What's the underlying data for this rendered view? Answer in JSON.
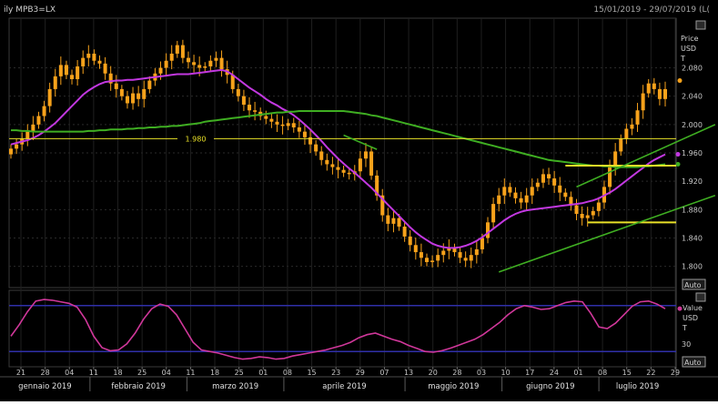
{
  "header": {
    "instrument_label": "ily MPB3=LX",
    "date_range": "15/01/2019 - 29/07/2019 (L("
  },
  "price_panel": {
    "axis_title_lines": [
      "Price",
      "USD",
      "T"
    ],
    "auto_label": "Auto"
  },
  "oscillator_panel": {
    "axis_title_lines": [
      "Value",
      "USD",
      "T"
    ],
    "auto_label": "Auto"
  },
  "colors": {
    "background": "#000000",
    "candle": "#f7a21b",
    "ma_short": "#c238e0",
    "ma_long": "#3fae22",
    "hline": "#e8e028",
    "band": "#2f2fa8",
    "oscillator": "#d0379a",
    "axis_text": "#c9c9c9"
  },
  "chart_data": [
    {
      "type": "candlestick",
      "y_ticks": [
        "2.080",
        "2.040",
        "2.000",
        "1.960",
        "1.920",
        "1.880",
        "1.840",
        "1.800"
      ],
      "ylim": [
        1.77,
        2.15
      ],
      "x_tick_labels": [
        "21",
        "28",
        "04",
        "11",
        "18",
        "25",
        "04",
        "11",
        "18",
        "25",
        "01",
        "08",
        "15",
        "23",
        "29",
        "07",
        "13",
        "20",
        "28",
        "03",
        "10",
        "17",
        "24",
        "01",
        "08",
        "15",
        "22",
        "29"
      ],
      "month_labels": [
        "gennaio 2019",
        "febbraio 2019",
        "marzo 2019",
        "aprile 2019",
        "maggio 2019",
        "giugno 2019",
        "luglio 2019"
      ],
      "close": [
        1.966,
        1.972,
        1.98,
        1.99,
        2.0,
        2.012,
        2.026,
        2.05,
        2.068,
        2.084,
        2.07,
        2.064,
        2.082,
        2.094,
        2.1,
        2.09,
        2.086,
        2.072,
        2.058,
        2.05,
        2.04,
        2.03,
        2.044,
        2.036,
        2.05,
        2.062,
        2.072,
        2.08,
        2.09,
        2.1,
        2.112,
        2.094,
        2.088,
        2.084,
        2.08,
        2.082,
        2.09,
        2.094,
        2.078,
        2.07,
        2.05,
        2.04,
        2.028,
        2.02,
        2.018,
        2.012,
        2.008,
        2.004,
        2.0,
        1.998,
        2.002,
        1.996,
        1.99,
        1.982,
        1.972,
        1.962,
        1.95,
        1.944,
        1.94,
        1.936,
        1.932,
        1.93,
        1.934,
        1.952,
        1.962,
        1.928,
        1.9,
        1.872,
        1.86,
        1.868,
        1.856,
        1.842,
        1.83,
        1.82,
        1.812,
        1.806,
        1.808,
        1.816,
        1.822,
        1.826,
        1.82,
        1.812,
        1.808,
        1.816,
        1.824,
        1.84,
        1.862,
        1.888,
        1.9,
        1.912,
        1.904,
        1.896,
        1.89,
        1.9,
        1.912,
        1.918,
        1.93,
        1.924,
        1.914,
        1.904,
        1.898,
        1.886,
        1.874,
        1.868,
        1.872,
        1.878,
        1.89,
        1.912,
        1.94,
        1.962,
        1.98,
        1.994,
        2.0,
        2.02,
        2.044,
        2.058,
        2.05,
        2.036,
        2.05
      ],
      "series": [
        {
          "name": "",
          "style": "line",
          "values": [
            1.972,
            1.974,
            1.976,
            1.978,
            1.981,
            1.985,
            1.99,
            1.996,
            2.002,
            2.01,
            2.018,
            2.026,
            2.034,
            2.042,
            2.048,
            2.053,
            2.057,
            2.06,
            2.061,
            2.062,
            2.062,
            2.063,
            2.063,
            2.064,
            2.065,
            2.066,
            2.067,
            2.068,
            2.069,
            2.07,
            2.071,
            2.071,
            2.071,
            2.072,
            2.073,
            2.074,
            2.075,
            2.076,
            2.077,
            2.075,
            2.07,
            2.064,
            2.058,
            2.052,
            2.047,
            2.042,
            2.036,
            2.031,
            2.027,
            2.022,
            2.018,
            2.013,
            2.007,
            2.0,
            1.993,
            1.985,
            1.977,
            1.968,
            1.96,
            1.952,
            1.945,
            1.938,
            1.932,
            1.925,
            1.918,
            1.911,
            1.903,
            1.895,
            1.887,
            1.879,
            1.871,
            1.863,
            1.855,
            1.848,
            1.842,
            1.837,
            1.832,
            1.829,
            1.827,
            1.826,
            1.826,
            1.827,
            1.829,
            1.832,
            1.836,
            1.841,
            1.847,
            1.853,
            1.859,
            1.865,
            1.87,
            1.874,
            1.877,
            1.879,
            1.88,
            1.881,
            1.882,
            1.883,
            1.884,
            1.885,
            1.886,
            1.887,
            1.888,
            1.889,
            1.891,
            1.893,
            1.896,
            1.9,
            1.904,
            1.909,
            1.915,
            1.921,
            1.927,
            1.933,
            1.939,
            1.945,
            1.95,
            1.954,
            1.958
          ]
        },
        {
          "name": "",
          "style": "line",
          "values": [
            1.992,
            1.992,
            1.991,
            1.991,
            1.99,
            1.99,
            1.99,
            1.99,
            1.99,
            1.99,
            1.99,
            1.99,
            1.99,
            1.99,
            1.991,
            1.991,
            1.992,
            1.992,
            1.993,
            1.993,
            1.993,
            1.994,
            1.994,
            1.995,
            1.995,
            1.996,
            1.996,
            1.997,
            1.997,
            1.998,
            1.998,
            1.999,
            2.0,
            2.001,
            2.002,
            2.004,
            2.005,
            2.006,
            2.007,
            2.008,
            2.009,
            2.01,
            2.011,
            2.012,
            2.013,
            2.014,
            2.015,
            2.016,
            2.017,
            2.017,
            2.018,
            2.018,
            2.019,
            2.019,
            2.019,
            2.019,
            2.019,
            2.019,
            2.019,
            2.019,
            2.019,
            2.018,
            2.017,
            2.016,
            2.015,
            2.013,
            2.012,
            2.01,
            2.008,
            2.006,
            2.004,
            2.002,
            2.0,
            1.998,
            1.996,
            1.994,
            1.992,
            1.99,
            1.988,
            1.986,
            1.984,
            1.982,
            1.98,
            1.978,
            1.976,
            1.974,
            1.972,
            1.97,
            1.968,
            1.966,
            1.964,
            1.962,
            1.96,
            1.958,
            1.956,
            1.954,
            1.952,
            1.95,
            1.949,
            1.948,
            1.947,
            1.946,
            1.945,
            1.944,
            1.943,
            1.942,
            1.942,
            1.941,
            1.941,
            1.94,
            1.94,
            1.94,
            1.94,
            1.94,
            1.941,
            1.941,
            1.942,
            1.943,
            1.944
          ]
        }
      ],
      "horizontal_lines": [
        {
          "value": 1.98,
          "label": "1.980"
        },
        {
          "value": 1.942,
          "label": ""
        },
        {
          "value": 1.862,
          "label": ""
        }
      ],
      "channel_lines": [
        {
          "from": [
            102,
            1.912
          ],
          "to": [
            127,
            2.0
          ]
        },
        {
          "from": [
            88,
            1.792
          ],
          "to": [
            127,
            1.9
          ]
        },
        {
          "from": [
            60,
            1.985
          ],
          "to": [
            66,
            1.965
          ]
        }
      ],
      "last_marker_value": 2.062
    },
    {
      "type": "line",
      "y_ticks": [
        "30"
      ],
      "ylim": [
        0,
        100
      ],
      "bands": [
        80,
        20
      ],
      "series": [
        {
          "name": "",
          "values": [
            40,
            55,
            72,
            86,
            88,
            87,
            85,
            83,
            78,
            62,
            40,
            25,
            21,
            22,
            30,
            44,
            62,
            76,
            82,
            79,
            68,
            50,
            32,
            22,
            20,
            18,
            15,
            12,
            10,
            11,
            13,
            12,
            10,
            11,
            14,
            16,
            18,
            20,
            22,
            25,
            28,
            32,
            38,
            42,
            44,
            40,
            36,
            33,
            28,
            24,
            20,
            19,
            21,
            24,
            28,
            32,
            36,
            42,
            50,
            58,
            68,
            76,
            80,
            78,
            75,
            76,
            80,
            84,
            86,
            85,
            70,
            52,
            50,
            57,
            68,
            79,
            85,
            86,
            82,
            76
          ]
        }
      ]
    }
  ]
}
